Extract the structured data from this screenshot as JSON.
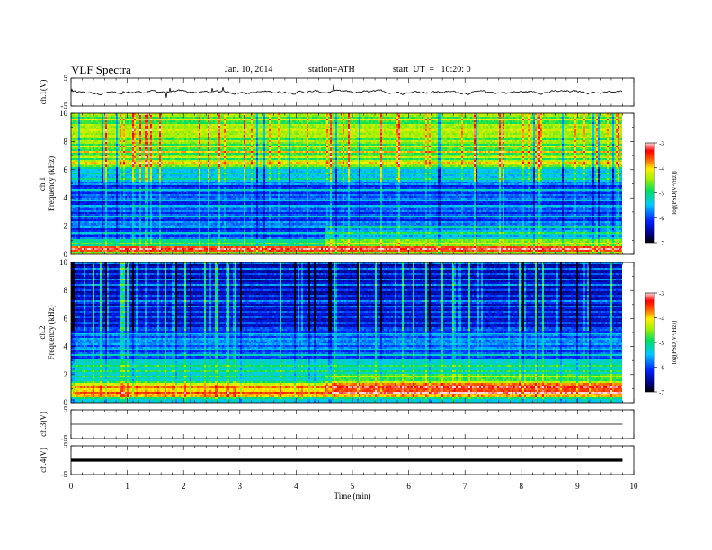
{
  "header": {
    "title": "VLF  Spectra",
    "date": "Jan. 10, 2014",
    "station": "station=ATH",
    "start_ut": "start  UT  =   10:20: 0"
  },
  "chart_data": [
    {
      "type": "line",
      "panel": "ch1-waveform",
      "ylabel": "ch.1(V)",
      "ylim": [
        -5,
        5
      ],
      "yticks": [
        "5",
        "-5"
      ],
      "xlim": [
        0,
        10
      ],
      "baseline": 0,
      "data_extent_min": 9.8
    },
    {
      "type": "heatmap",
      "panel": "ch1-spectrogram",
      "ylabel_top": "ch.1",
      "ylabel": "Frequency  (kHz)",
      "ylim": [
        0,
        10
      ],
      "yticks": [
        "0",
        "2",
        "4",
        "6",
        "8",
        "10"
      ],
      "xlim": [
        0,
        10
      ],
      "data_extent_min": 9.8,
      "colorbar": {
        "label": "log(PSD(V²/Hz))",
        "range": [
          -7,
          -3
        ],
        "ticks": [
          "-3",
          "-4",
          "-5",
          "-6",
          "-7"
        ]
      }
    },
    {
      "type": "heatmap",
      "panel": "ch2-spectrogram",
      "ylabel_top": "ch.2",
      "ylabel": "Frequency  (kHz)",
      "ylim": [
        0,
        10
      ],
      "yticks": [
        "0",
        "2",
        "4",
        "6",
        "8",
        "10"
      ],
      "xlim": [
        0,
        10
      ],
      "data_extent_min": 9.8,
      "colorbar": {
        "label": "log(PSD(V²/Hz))",
        "range": [
          -7,
          -3
        ],
        "ticks": [
          "-3",
          "-4",
          "-5",
          "-6",
          "-7"
        ]
      }
    },
    {
      "type": "line",
      "panel": "ch3-waveform",
      "ylabel": "ch.3(V)",
      "ylim": [
        -5,
        5
      ],
      "yticks": [
        "5",
        "-5"
      ],
      "xlim": [
        0,
        10
      ],
      "baseline": 0,
      "data_extent_min": 9.8
    },
    {
      "type": "line",
      "panel": "ch4-waveform",
      "ylabel": "ch.4(V)",
      "ylim": [
        -5,
        5
      ],
      "yticks": [
        "5",
        "-5"
      ],
      "xlim": [
        0,
        10
      ],
      "baseline": 0,
      "data_extent_min": 9.8
    }
  ],
  "xaxis": {
    "label": "Time  (min)",
    "ticks": [
      "0",
      "1",
      "2",
      "3",
      "4",
      "5",
      "6",
      "7",
      "8",
      "9",
      "10"
    ]
  }
}
